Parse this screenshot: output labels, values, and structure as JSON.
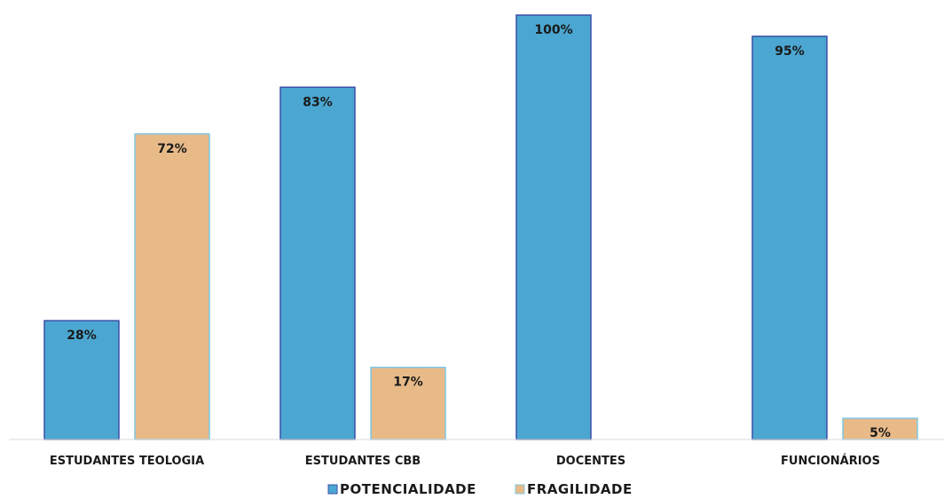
{
  "chart_data": {
    "type": "bar",
    "categories": [
      "ESTUDANTES TEOLOGIA",
      "ESTUDANTES CBB",
      "DOCENTES",
      "FUNCIONÁRIOS"
    ],
    "series": [
      {
        "name": "POTENCIALIDADE",
        "values": [
          28,
          83,
          100,
          95
        ],
        "labels": [
          "28%",
          "83%",
          "100%",
          "95%"
        ],
        "color": "#4BA7D1",
        "edge": "#3b4fa8"
      },
      {
        "name": "FRAGILIDADE",
        "values": [
          72,
          17,
          0,
          5
        ],
        "labels": [
          "72%",
          "17%",
          null,
          "5%"
        ],
        "color": "#E8BA88",
        "edge": "#7fc7e6"
      }
    ],
    "ylim": [
      0,
      100
    ],
    "legend_position": "bottom",
    "grid": false
  }
}
